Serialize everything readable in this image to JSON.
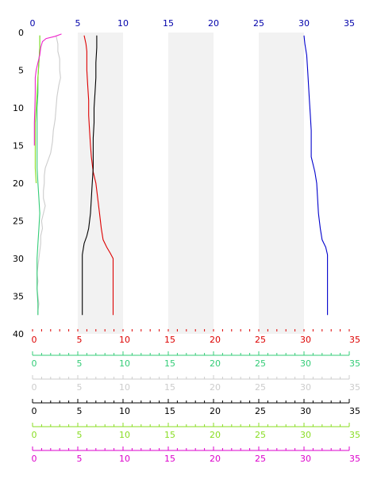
{
  "chart_data": {
    "type": "line",
    "orientation": "vertical-profile",
    "y_axis": {
      "ticks": [
        "0",
        "5",
        "10",
        "15",
        "20",
        "25",
        "30",
        "35",
        "40"
      ],
      "range": [
        0,
        40
      ],
      "inverted": true
    },
    "top_axis": {
      "ticks": [
        "0",
        "5",
        "10",
        "15",
        "20",
        "25",
        "30",
        "35"
      ],
      "range": [
        0,
        35
      ],
      "color": "#0000aa"
    },
    "shaded_bands": [
      [
        5,
        10
      ],
      [
        15,
        20
      ],
      [
        25,
        30
      ]
    ],
    "band_color": "#f2f2f2",
    "bottom_axes": [
      {
        "color": "#dd0000",
        "ticks": [
          "0",
          "5",
          "10",
          "15",
          "20",
          "25",
          "30",
          "35"
        ],
        "range": [
          0,
          35
        ],
        "style": "dashed"
      },
      {
        "color": "#33cc77",
        "ticks": [
          "0",
          "5",
          "10",
          "15",
          "20",
          "25",
          "30",
          "35"
        ],
        "range": [
          0,
          35
        ],
        "style": "solid"
      },
      {
        "color": "#cccccc",
        "ticks": [
          "0",
          "5",
          "10",
          "15",
          "20",
          "25",
          "30",
          "35"
        ],
        "range": [
          0,
          35
        ],
        "style": "solid"
      },
      {
        "color": "#000000",
        "ticks": [
          "0",
          "5",
          "10",
          "15",
          "20",
          "25",
          "30",
          "35"
        ],
        "range": [
          0,
          35
        ],
        "style": "solid"
      },
      {
        "color": "#88dd22",
        "ticks": [
          "0",
          "5",
          "10",
          "15",
          "20",
          "25",
          "30",
          "35"
        ],
        "range": [
          0,
          35
        ],
        "style": "solid"
      },
      {
        "color": "#dd00cc",
        "ticks": [
          "0",
          "5",
          "10",
          "15",
          "20",
          "25",
          "30",
          "35"
        ],
        "range": [
          0,
          35
        ],
        "style": "solid"
      }
    ],
    "series": [
      {
        "color": "#0000cc",
        "points": [
          [
            30.0,
            0.4
          ],
          [
            30.1,
            1.5
          ],
          [
            30.3,
            3
          ],
          [
            30.4,
            5
          ],
          [
            30.5,
            7
          ],
          [
            30.6,
            9
          ],
          [
            30.7,
            11
          ],
          [
            30.8,
            13
          ],
          [
            30.8,
            15
          ],
          [
            30.8,
            16.5
          ],
          [
            31.0,
            17.5
          ],
          [
            31.2,
            18.5
          ],
          [
            31.4,
            20
          ],
          [
            31.5,
            22
          ],
          [
            31.6,
            24
          ],
          [
            31.8,
            26
          ],
          [
            32.0,
            27.5
          ],
          [
            32.4,
            28.5
          ],
          [
            32.6,
            29.5
          ],
          [
            32.6,
            32
          ],
          [
            32.6,
            34
          ],
          [
            32.6,
            37.5
          ]
        ]
      },
      {
        "color": "#dd0000",
        "points": [
          [
            5.7,
            0.4
          ],
          [
            5.9,
            1.5
          ],
          [
            6.0,
            2.5
          ],
          [
            6.0,
            5
          ],
          [
            6.1,
            7
          ],
          [
            6.2,
            9
          ],
          [
            6.2,
            11
          ],
          [
            6.3,
            13
          ],
          [
            6.4,
            15
          ],
          [
            6.5,
            16.5
          ],
          [
            6.7,
            18.5
          ],
          [
            7.0,
            20
          ],
          [
            7.2,
            22
          ],
          [
            7.4,
            24
          ],
          [
            7.6,
            26
          ],
          [
            7.8,
            27.5
          ],
          [
            8.2,
            28.5
          ],
          [
            8.6,
            29.3
          ],
          [
            8.9,
            30
          ],
          [
            8.9,
            32
          ],
          [
            8.9,
            35
          ],
          [
            8.9,
            37.5
          ]
        ]
      },
      {
        "color": "#000000",
        "points": [
          [
            7.1,
            0.4
          ],
          [
            7.1,
            2
          ],
          [
            7.0,
            4
          ],
          [
            7.0,
            6
          ],
          [
            6.9,
            8
          ],
          [
            6.8,
            10
          ],
          [
            6.8,
            12
          ],
          [
            6.7,
            14
          ],
          [
            6.7,
            16
          ],
          [
            6.7,
            18
          ],
          [
            6.6,
            20
          ],
          [
            6.5,
            22
          ],
          [
            6.4,
            24
          ],
          [
            6.2,
            26
          ],
          [
            6.0,
            27
          ],
          [
            5.7,
            28
          ],
          [
            5.5,
            29.5
          ],
          [
            5.5,
            31
          ],
          [
            5.5,
            33
          ],
          [
            5.5,
            35
          ],
          [
            5.5,
            37.5
          ]
        ]
      },
      {
        "color": "#cccccc",
        "points": [
          [
            2.6,
            0.4
          ],
          [
            2.8,
            1.5
          ],
          [
            2.8,
            2.5
          ],
          [
            3.0,
            3.5
          ],
          [
            3.0,
            5
          ],
          [
            3.1,
            6
          ],
          [
            2.9,
            7
          ],
          [
            2.7,
            8.5
          ],
          [
            2.6,
            10
          ],
          [
            2.5,
            11.5
          ],
          [
            2.3,
            13
          ],
          [
            2.2,
            14.5
          ],
          [
            2.0,
            16
          ],
          [
            1.7,
            17
          ],
          [
            1.4,
            18
          ],
          [
            1.3,
            19
          ],
          [
            1.3,
            20
          ],
          [
            1.2,
            21
          ],
          [
            1.2,
            22
          ],
          [
            1.4,
            23
          ],
          [
            1.2,
            24
          ],
          [
            1.0,
            25
          ],
          [
            1.1,
            26
          ],
          [
            0.9,
            27
          ],
          [
            0.9,
            28
          ],
          [
            0.8,
            29
          ],
          [
            0.7,
            30
          ],
          [
            0.6,
            31
          ],
          [
            0.5,
            32
          ],
          [
            0.6,
            33
          ],
          [
            0.5,
            34
          ],
          [
            0.6,
            35
          ],
          [
            0.7,
            36
          ],
          [
            0.6,
            37
          ],
          [
            0.6,
            37.5
          ]
        ]
      },
      {
        "color": "#33cc77",
        "points": [
          [
            0.8,
            0.4
          ],
          [
            0.8,
            2
          ],
          [
            0.7,
            4
          ],
          [
            0.6,
            6
          ],
          [
            0.6,
            8
          ],
          [
            0.5,
            10
          ],
          [
            0.5,
            12
          ],
          [
            0.5,
            14
          ],
          [
            0.5,
            16
          ],
          [
            0.5,
            18
          ],
          [
            0.6,
            20
          ],
          [
            0.7,
            22
          ],
          [
            0.8,
            24
          ],
          [
            0.7,
            26
          ],
          [
            0.6,
            28
          ],
          [
            0.5,
            30
          ],
          [
            0.5,
            32
          ],
          [
            0.5,
            34
          ],
          [
            0.6,
            36
          ],
          [
            0.6,
            37.5
          ]
        ]
      },
      {
        "color": "#88dd22",
        "points": [
          [
            0.8,
            0.4
          ],
          [
            0.8,
            2
          ],
          [
            0.7,
            4
          ],
          [
            0.6,
            6
          ],
          [
            0.5,
            8
          ],
          [
            0.4,
            10
          ],
          [
            0.3,
            12
          ],
          [
            0.3,
            14
          ],
          [
            0.3,
            16
          ],
          [
            0.3,
            18
          ],
          [
            0.4,
            20
          ]
        ]
      },
      {
        "color": "#ee22cc",
        "points": [
          [
            3.2,
            0.2
          ],
          [
            2.5,
            0.5
          ],
          [
            1.5,
            0.8
          ],
          [
            1.1,
            1.2
          ],
          [
            0.9,
            2
          ],
          [
            0.8,
            3
          ],
          [
            0.6,
            4
          ],
          [
            0.4,
            5
          ],
          [
            0.3,
            6
          ],
          [
            0.3,
            8
          ],
          [
            0.25,
            10
          ],
          [
            0.2,
            12
          ],
          [
            0.2,
            14
          ],
          [
            0.2,
            15
          ]
        ]
      }
    ]
  }
}
